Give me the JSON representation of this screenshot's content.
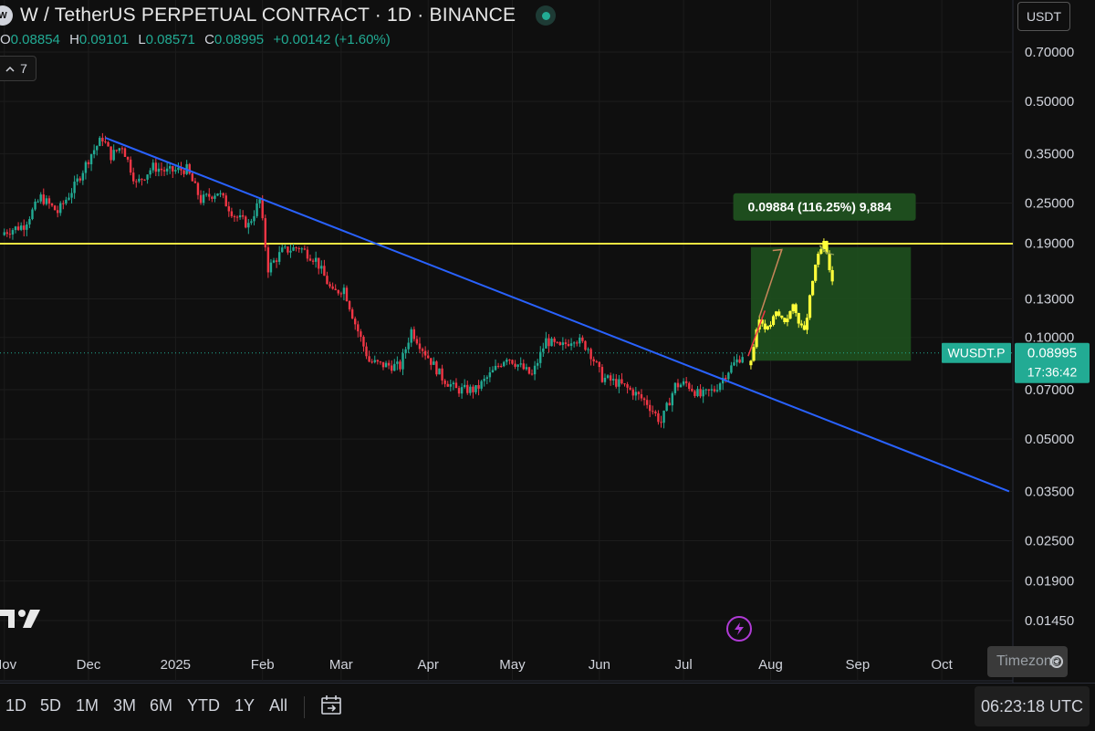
{
  "header": {
    "logo_text": "W",
    "title": "W / TetherUS PERPETUAL CONTRACT · 1D · BINANCE",
    "ohlc": {
      "open_label": "O",
      "open": "0.08854",
      "high_label": "H",
      "high": "0.09101",
      "low_label": "L",
      "low": "0.08571",
      "close_label": "C",
      "close": "0.08995",
      "change": "+0.00142 (+1.60%)"
    },
    "indicators_count": "7",
    "currency": "USDT"
  },
  "bottom_bar": {
    "ranges": [
      "1D",
      "5D",
      "1M",
      "3M",
      "6M",
      "YTD",
      "1Y",
      "All"
    ],
    "clock": "06:23:18 UTC",
    "timezone_label": "Timezone"
  },
  "icons": [
    "logo-icon",
    "live-status-icon",
    "chevron-icon",
    "calendar-icon",
    "tradingview-logo-icon",
    "lightning-icon",
    "gear-icon"
  ],
  "colors": {
    "background": "#0f0f0f",
    "up_candle": "#22ab94",
    "down_candle": "#f23645",
    "trendline": "#2962ff",
    "resistance": "#f4e542",
    "projection": "#ffff3a",
    "target_box": "#1e4d1e",
    "price_tag": "#22ab94"
  },
  "chart_data": {
    "type": "candlestick",
    "symbol": "WUSDT.P",
    "interval": "1D",
    "y_scale": "log",
    "y_ticks": [
      "0.70000",
      "0.50000",
      "0.35000",
      "0.25000",
      "0.19000",
      "0.13000",
      "0.10000",
      "0.07000",
      "0.05000",
      "0.03500",
      "0.02500",
      "0.01900",
      "0.01450"
    ],
    "x_ticks": [
      {
        "label": "Nov",
        "date": "2024-11-01"
      },
      {
        "label": "Dec",
        "date": "2024-12-01"
      },
      {
        "label": "2025",
        "date": "2025-01-01"
      },
      {
        "label": "Feb",
        "date": "2025-02-01"
      },
      {
        "label": "Mar",
        "date": "2025-03-01"
      },
      {
        "label": "Apr",
        "date": "2025-04-01"
      },
      {
        "label": "May",
        "date": "2025-05-01"
      },
      {
        "label": "Jun",
        "date": "2025-06-01"
      },
      {
        "label": "Jul",
        "date": "2025-07-01"
      },
      {
        "label": "Aug",
        "date": "2025-08-01"
      },
      {
        "label": "Sep",
        "date": "2025-09-01"
      },
      {
        "label": "Oct",
        "date": "2025-10-01"
      }
    ],
    "price_path": [
      [
        "2024-11-01",
        0.205
      ],
      [
        "2024-11-08",
        0.215
      ],
      [
        "2024-11-14",
        0.26
      ],
      [
        "2024-11-20",
        0.235
      ],
      [
        "2024-11-26",
        0.28
      ],
      [
        "2024-12-02",
        0.35
      ],
      [
        "2024-12-06",
        0.39
      ],
      [
        "2024-12-09",
        0.345
      ],
      [
        "2024-12-13",
        0.37
      ],
      [
        "2024-12-18",
        0.285
      ],
      [
        "2024-12-24",
        0.32
      ],
      [
        "2024-12-29",
        0.31
      ],
      [
        "2025-01-05",
        0.315
      ],
      [
        "2025-01-10",
        0.255
      ],
      [
        "2025-01-16",
        0.27
      ],
      [
        "2025-01-22",
        0.23
      ],
      [
        "2025-01-27",
        0.215
      ],
      [
        "2025-01-31",
        0.255
      ],
      [
        "2025-02-03",
        0.16
      ],
      [
        "2025-02-08",
        0.18
      ],
      [
        "2025-02-14",
        0.185
      ],
      [
        "2025-02-20",
        0.17
      ],
      [
        "2025-02-26",
        0.135
      ],
      [
        "2025-03-02",
        0.14
      ],
      [
        "2025-03-06",
        0.11
      ],
      [
        "2025-03-11",
        0.085
      ],
      [
        "2025-03-15",
        0.083
      ],
      [
        "2025-03-22",
        0.082
      ],
      [
        "2025-03-26",
        0.105
      ],
      [
        "2025-03-31",
        0.09
      ],
      [
        "2025-04-06",
        0.076
      ],
      [
        "2025-04-11",
        0.07
      ],
      [
        "2025-04-18",
        0.07
      ],
      [
        "2025-04-24",
        0.079
      ],
      [
        "2025-04-29",
        0.088
      ],
      [
        "2025-05-03",
        0.083
      ],
      [
        "2025-05-08",
        0.077
      ],
      [
        "2025-05-13",
        0.098
      ],
      [
        "2025-05-18",
        0.093
      ],
      [
        "2025-05-23",
        0.1
      ],
      [
        "2025-05-28",
        0.093
      ],
      [
        "2025-06-02",
        0.076
      ],
      [
        "2025-06-08",
        0.073
      ],
      [
        "2025-06-13",
        0.069
      ],
      [
        "2025-06-18",
        0.064
      ],
      [
        "2025-06-23",
        0.056
      ],
      [
        "2025-06-28",
        0.072
      ],
      [
        "2025-07-02",
        0.073
      ],
      [
        "2025-07-07",
        0.067
      ],
      [
        "2025-07-12",
        0.07
      ],
      [
        "2025-07-17",
        0.08
      ],
      [
        "2025-07-22",
        0.089
      ]
    ],
    "projection_path": [
      [
        "2025-07-25",
        0.086
      ],
      [
        "2025-07-28",
        0.113
      ],
      [
        "2025-07-31",
        0.106
      ],
      [
        "2025-08-03",
        0.118
      ],
      [
        "2025-08-06",
        0.112
      ],
      [
        "2025-08-09",
        0.123
      ],
      [
        "2025-08-13",
        0.103
      ],
      [
        "2025-08-17",
        0.165
      ],
      [
        "2025-08-20",
        0.19
      ],
      [
        "2025-08-23",
        0.145
      ]
    ],
    "trendline": {
      "start": [
        "2024-12-07",
        0.39
      ],
      "end": [
        "2025-10-25",
        0.035
      ],
      "color": "#2962ff"
    },
    "horizontal_line": {
      "price": 0.1895,
      "color": "#f4e542"
    },
    "target_box": {
      "from_date": "2025-07-25",
      "to_date": "2025-09-20",
      "from_price": 0.0853,
      "to_price": 0.185
    },
    "target_label": "0.09884 (116.25%) 9,884",
    "current_price": {
      "symbol": "WUSDT.P",
      "price": "0.08995",
      "countdown": "17:36:42"
    }
  }
}
